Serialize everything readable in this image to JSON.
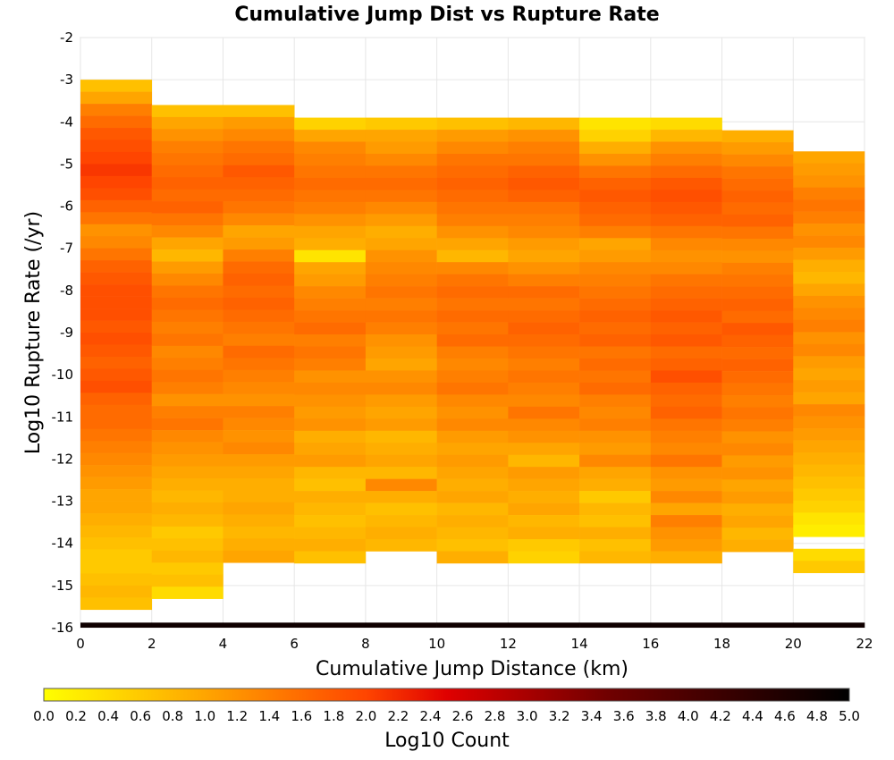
{
  "chart_data": {
    "type": "heatmap",
    "title": "Cumulative Jump Dist vs Rupture Rate",
    "xlabel": "Cumulative Jump Distance (km)",
    "ylabel": "Log10 Rupture Rate (/yr)",
    "xlim": [
      0,
      22
    ],
    "ylim": [
      -16,
      -2
    ],
    "x_ticks": [
      "0",
      "2",
      "4",
      "6",
      "8",
      "10",
      "12",
      "14",
      "16",
      "18",
      "20",
      "22"
    ],
    "y_ticks": [
      "-2",
      "-3",
      "-4",
      "-5",
      "-6",
      "-7",
      "-8",
      "-9",
      "-10",
      "-11",
      "-12",
      "-13",
      "-14",
      "-15",
      "-16"
    ],
    "x_bin_width": 2,
    "y_bin_height": 0.2857,
    "bottom_row_value": 4.8,
    "columns": [
      {
        "x0": 0,
        "top": -3.0,
        "values": [
          0.7,
          1.0,
          1.4,
          1.6,
          1.8,
          1.9,
          2.0,
          2.1,
          2.0,
          1.9,
          1.7,
          1.5,
          1.2,
          1.3,
          1.5,
          1.7,
          1.8,
          1.9,
          1.9,
          1.9,
          1.8,
          1.9,
          1.8,
          1.7,
          1.8,
          1.9,
          1.7,
          1.6,
          1.6,
          1.5,
          1.4,
          1.3,
          1.2,
          1.1,
          1.0,
          1.0,
          0.9,
          0.8,
          0.7,
          0.6,
          0.6,
          0.7,
          0.8,
          0.7
        ]
      },
      {
        "x0": 2,
        "top": -3.6,
        "values": [
          0.7,
          1.0,
          1.2,
          1.4,
          1.5,
          1.6,
          1.7,
          1.6,
          1.7,
          1.5,
          1.3,
          1.0,
          0.8,
          1.1,
          1.3,
          1.5,
          1.6,
          1.5,
          1.4,
          1.5,
          1.3,
          1.4,
          1.5,
          1.4,
          1.2,
          1.4,
          1.5,
          1.3,
          1.2,
          1.1,
          1.0,
          0.9,
          0.8,
          0.9,
          0.8,
          0.6,
          0.7,
          0.8,
          0.6,
          0.7,
          0.4
        ]
      },
      {
        "x0": 4,
        "top": -3.6,
        "values": [
          0.7,
          1.1,
          1.3,
          1.5,
          1.6,
          1.8,
          1.7,
          1.6,
          1.5,
          1.3,
          1.0,
          1.1,
          1.4,
          1.6,
          1.7,
          1.6,
          1.7,
          1.6,
          1.5,
          1.4,
          1.6,
          1.5,
          1.4,
          1.3,
          1.2,
          1.4,
          1.3,
          1.2,
          1.3,
          1.1,
          1.0,
          0.9,
          0.9,
          1.0,
          0.9,
          0.8,
          0.9,
          1.0
        ]
      },
      {
        "x0": 6,
        "top": -3.9,
        "values": [
          0.5,
          1.0,
          1.3,
          1.4,
          1.5,
          1.6,
          1.5,
          1.4,
          1.2,
          1.0,
          0.9,
          0.3,
          1.0,
          1.1,
          1.3,
          1.4,
          1.5,
          1.6,
          1.4,
          1.5,
          1.4,
          1.2,
          1.3,
          1.2,
          1.1,
          1.2,
          0.9,
          1.0,
          1.1,
          0.8,
          0.7,
          0.9,
          0.8,
          0.7,
          0.8,
          0.9,
          0.7
        ]
      },
      {
        "x0": 8,
        "top": -3.9,
        "values": [
          0.6,
          1.0,
          1.1,
          1.3,
          1.5,
          1.6,
          1.5,
          1.3,
          1.1,
          0.9,
          1.0,
          1.2,
          1.3,
          1.4,
          1.5,
          1.4,
          1.5,
          1.4,
          1.2,
          1.1,
          1.0,
          1.2,
          1.3,
          1.1,
          1.0,
          1.1,
          0.8,
          0.9,
          1.0,
          0.8,
          1.3,
          0.9,
          0.7,
          0.8,
          0.9,
          0.8
        ]
      },
      {
        "x0": 10,
        "top": -3.9,
        "values": [
          0.7,
          1.1,
          1.3,
          1.5,
          1.6,
          1.7,
          1.6,
          1.5,
          1.4,
          1.2,
          1.0,
          0.8,
          1.3,
          1.5,
          1.6,
          1.5,
          1.6,
          1.5,
          1.6,
          1.4,
          1.3,
          1.4,
          1.5,
          1.3,
          1.2,
          1.3,
          1.1,
          1.0,
          1.1,
          1.0,
          0.9,
          1.0,
          0.8,
          0.9,
          0.8,
          0.7,
          0.9
        ]
      },
      {
        "x0": 12,
        "top": -3.9,
        "values": [
          0.8,
          1.2,
          1.4,
          1.5,
          1.7,
          1.8,
          1.7,
          1.5,
          1.4,
          1.3,
          1.1,
          1.0,
          1.2,
          1.4,
          1.6,
          1.5,
          1.6,
          1.7,
          1.6,
          1.5,
          1.4,
          1.5,
          1.4,
          1.3,
          1.5,
          1.3,
          1.2,
          1.0,
          0.8,
          1.1,
          1.0,
          0.9,
          1.0,
          0.8,
          0.9,
          0.6,
          0.5
        ]
      },
      {
        "x0": 14,
        "top": -3.9,
        "values": [
          0.3,
          0.5,
          0.9,
          1.2,
          1.5,
          1.7,
          1.8,
          1.7,
          1.6,
          1.4,
          1.0,
          1.1,
          1.3,
          1.4,
          1.5,
          1.6,
          1.7,
          1.6,
          1.7,
          1.5,
          1.6,
          1.5,
          1.6,
          1.4,
          1.3,
          1.4,
          1.2,
          1.1,
          1.3,
          1.0,
          0.9,
          0.6,
          0.8,
          0.7,
          0.9,
          0.7,
          0.8
        ]
      },
      {
        "x0": 16,
        "top": -3.9,
        "values": [
          0.4,
          0.8,
          1.2,
          1.4,
          1.6,
          1.8,
          1.9,
          1.8,
          1.7,
          1.5,
          1.3,
          1.2,
          1.3,
          1.5,
          1.6,
          1.7,
          1.8,
          1.7,
          1.8,
          1.6,
          1.7,
          1.9,
          1.7,
          1.6,
          1.7,
          1.5,
          1.4,
          1.3,
          1.5,
          1.2,
          1.1,
          1.3,
          1.0,
          1.4,
          1.2,
          1.1,
          0.9
        ]
      },
      {
        "x0": 18,
        "top": -4.2,
        "values": [
          0.9,
          1.1,
          1.3,
          1.5,
          1.6,
          1.7,
          1.6,
          1.7,
          1.5,
          1.3,
          1.2,
          1.4,
          1.5,
          1.6,
          1.7,
          1.6,
          1.8,
          1.7,
          1.6,
          1.7,
          1.6,
          1.5,
          1.4,
          1.5,
          1.4,
          1.2,
          1.3,
          1.1,
          1.2,
          1.0,
          1.1,
          0.9,
          1.0,
          0.8,
          0.9
        ]
      },
      {
        "x0": 20,
        "top": -4.7,
        "values": [
          1.0,
          1.1,
          1.2,
          1.4,
          1.5,
          1.4,
          1.2,
          1.3,
          1.1,
          0.9,
          0.8,
          1.0,
          1.2,
          1.3,
          1.4,
          1.2,
          1.3,
          1.1,
          1.0,
          1.1,
          1.0,
          1.3,
          1.2,
          1.1,
          1.0,
          0.9,
          0.8,
          0.7,
          0.6,
          0.5,
          0.3,
          0.2,
          null,
          0.4,
          0.6
        ]
      }
    ],
    "colorbar": {
      "label": "Log10 Count",
      "range": [
        0,
        5
      ],
      "ticks": [
        "0.0",
        "0.2",
        "0.4",
        "0.6",
        "0.8",
        "1.0",
        "1.2",
        "1.4",
        "1.6",
        "1.8",
        "2.0",
        "2.2",
        "2.4",
        "2.6",
        "2.8",
        "3.0",
        "3.2",
        "3.4",
        "3.6",
        "3.8",
        "4.0",
        "4.2",
        "4.4",
        "4.6",
        "4.8",
        "5.0"
      ],
      "stops": [
        "#ffff00",
        "#ffa500",
        "#ff4500",
        "#e00000",
        "#700000",
        "#000000"
      ]
    },
    "grid": true
  }
}
